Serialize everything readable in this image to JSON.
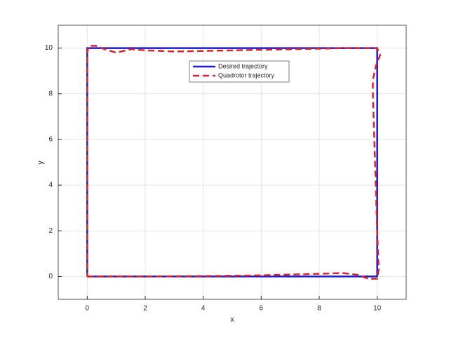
{
  "chart_data": {
    "type": "line",
    "xlabel": "x",
    "ylabel": "y",
    "xlim": [
      -1,
      11
    ],
    "ylim": [
      -1,
      11
    ],
    "xticks": [
      0,
      2,
      4,
      6,
      8,
      10
    ],
    "yticks": [
      0,
      2,
      4,
      6,
      8,
      10
    ],
    "grid": true,
    "legend": "north",
    "series": [
      {
        "name": "Desired trajectory",
        "color": "#1a1ad0",
        "style": "solid",
        "x": [
          0,
          10,
          10,
          0,
          0
        ],
        "values": [
          0,
          0,
          10,
          10,
          0
        ]
      },
      {
        "name": "Quadrotor trajectory",
        "color": "#e02028",
        "style": "dashed",
        "x": [
          0,
          2,
          4,
          6,
          8,
          8.8,
          9.3,
          9.7,
          10,
          10.05,
          10,
          9.95,
          9.9,
          9.85,
          9.85,
          9.95,
          10.1,
          10,
          9,
          7,
          5,
          3,
          2,
          1.5,
          1,
          0.6,
          0.3,
          0.05,
          0,
          0,
          0,
          0
        ],
        "values": [
          0,
          0,
          0.02,
          0.05,
          0.12,
          0.15,
          0.08,
          -0.1,
          -0.1,
          0.3,
          2,
          4,
          6,
          8,
          8.6,
          9.2,
          9.7,
          10,
          10,
          9.95,
          9.9,
          9.85,
          9.9,
          9.95,
          9.8,
          9.95,
          10.1,
          10.1,
          9.8,
          8,
          4,
          0
        ]
      }
    ]
  }
}
